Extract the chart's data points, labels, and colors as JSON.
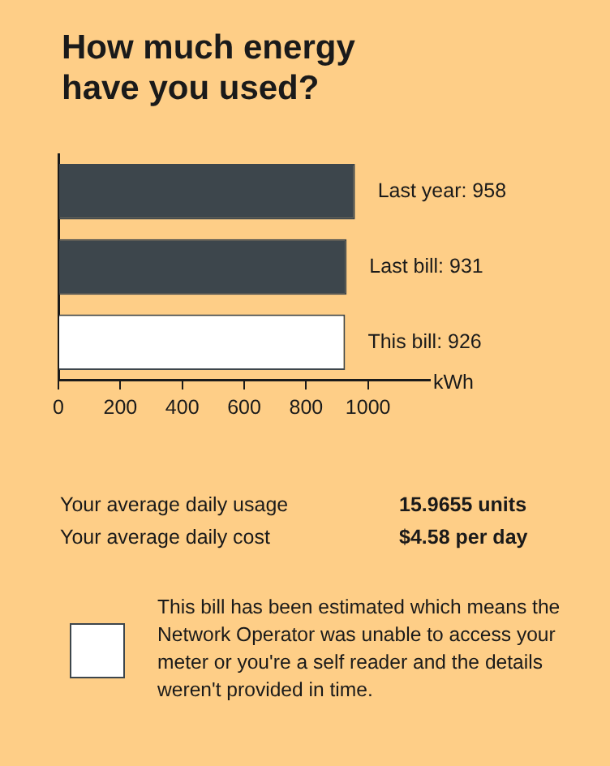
{
  "chart_data": {
    "type": "bar",
    "orientation": "horizontal",
    "title": "How much energy have you used?",
    "xlabel": "kWh",
    "categories": [
      null,
      null,
      null
    ],
    "values": [
      958,
      931,
      926
    ],
    "colors": [
      "#3d464c",
      "#3d464c",
      "#ffffff"
    ],
    "value_labels": [
      "Last year: 958",
      "Last bill: 931",
      "This bill: 926"
    ],
    "xlim": [
      0,
      1200
    ],
    "xticks": [
      0,
      200,
      400,
      600,
      800,
      1000
    ],
    "grid": false,
    "legend": false,
    "annotations": [
      "Your average daily usage",
      "15.9655 units",
      "Your average daily cost",
      "$4.58 per day",
      "This bill has been estimated which means the Network Operator was unable to access your meter or you're a self reader and the details weren't provided in time."
    ]
  }
}
